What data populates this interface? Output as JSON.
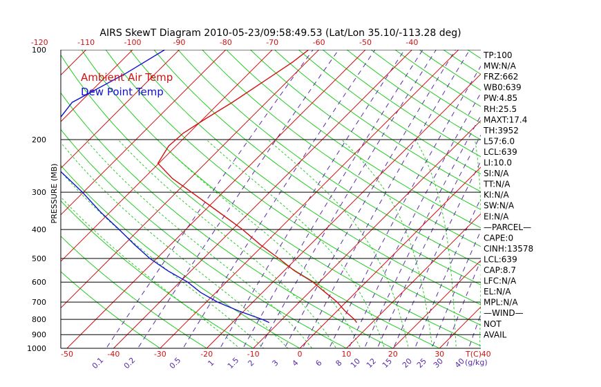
{
  "title": "AIRS SkewT Diagram 2010-05-23/09:58:49.53 (Lat/Lon 35.10/-113.28 deg)",
  "legend": {
    "ambient": "Ambient Air Temp",
    "dewpoint": "Dew Point Temp"
  },
  "colors": {
    "temperature": "#d01010",
    "dewpoint": "#1010d0",
    "isotherm": "#d01010",
    "dry_adiabat": "#22cc22",
    "moist_adiabat": "#22cc22",
    "mixing_ratio": "#5a2aa8",
    "isobar": "#000000",
    "bottom_axis": "#d01010",
    "mixing_label": "#5a2aa8"
  },
  "indices": [
    "TP:100",
    "MW:N/A",
    "FRZ:662",
    "WB0:639",
    "PW:4.85",
    "RH:25.5",
    "MAXT:17.4",
    "TH:3952",
    "L57:6.0",
    "LCL:639",
    "LI:10.0",
    "SI:N/A",
    "TT:N/A",
    "KI:N/A",
    "SW:N/A",
    "EI:N/A",
    "—PARCEL—",
    "CAPE:0",
    "CINH:13578",
    "LCL:639",
    "CAP:8.7",
    "LFC:N/A",
    "EL:N/A",
    "MPL:N/A",
    "—WIND—",
    "NOT",
    "AVAIL"
  ],
  "chart_data": {
    "type": "line",
    "title": "AIRS SkewT Diagram 2010-05-23/09:58:49.53 (Lat/Lon 35.10/-113.28 deg)",
    "ylabel": "PRESSURE (MB)",
    "xlabel": "T(C)",
    "y_scale": "log",
    "ylim": [
      1000,
      100
    ],
    "pressure_ticks": [
      "100",
      "200",
      "300",
      "400",
      "500",
      "600",
      "700",
      "800",
      "900",
      "1000"
    ],
    "top_temp_ticks": [
      "-120",
      "-110",
      "-100",
      "-90",
      "-80",
      "-70",
      "-60",
      "-50",
      "-40"
    ],
    "bottom_temp_ticks": [
      "-50",
      "-40",
      "-30",
      "-20",
      "-10",
      "0",
      "10",
      "20",
      "30",
      "40"
    ],
    "bottom_axis_unit": "T(C)",
    "mixing_ratio_labels": [
      "0.1",
      "0.2",
      "0.5",
      "1",
      "1.5",
      "2",
      "3",
      "4",
      "6",
      "8",
      "10",
      "12",
      "15",
      "20",
      "25",
      "30",
      "40"
    ],
    "mixing_ratio_unit": "(g/kg)",
    "grid": true,
    "legend_position": "top-left",
    "series": [
      {
        "name": "Ambient Air Temp",
        "points": [
          {
            "p": 100,
            "t": -62.2
          },
          {
            "p": 110,
            "t": -63.0
          },
          {
            "p": 130,
            "t": -65.3
          },
          {
            "p": 150,
            "t": -67.3
          },
          {
            "p": 170,
            "t": -69.5
          },
          {
            "p": 190,
            "t": -71.2
          },
          {
            "p": 210,
            "t": -71.6
          },
          {
            "p": 240,
            "t": -70.2
          },
          {
            "p": 270,
            "t": -63.8
          },
          {
            "p": 300,
            "t": -56.8
          },
          {
            "p": 350,
            "t": -46.6
          },
          {
            "p": 400,
            "t": -37.8
          },
          {
            "p": 450,
            "t": -30.7
          },
          {
            "p": 500,
            "t": -23.8
          },
          {
            "p": 550,
            "t": -17.8
          },
          {
            "p": 600,
            "t": -11.4
          },
          {
            "p": 650,
            "t": -6.5
          },
          {
            "p": 700,
            "t": -1.9
          },
          {
            "p": 750,
            "t": 1.7
          },
          {
            "p": 800,
            "t": 5.5
          },
          {
            "p": 820,
            "t": 6.7
          }
        ]
      },
      {
        "name": "Dew Point Temp",
        "points": [
          {
            "p": 100,
            "t": -93.1
          },
          {
            "p": 120,
            "t": -96.4
          },
          {
            "p": 150,
            "t": -101.7
          },
          {
            "p": 200,
            "t": -99.9
          },
          {
            "p": 250,
            "t": -90.6
          },
          {
            "p": 300,
            "t": -80.2
          },
          {
            "p": 350,
            "t": -72.0
          },
          {
            "p": 400,
            "t": -64.3
          },
          {
            "p": 450,
            "t": -57.7
          },
          {
            "p": 500,
            "t": -51.5
          },
          {
            "p": 550,
            "t": -45.0
          },
          {
            "p": 600,
            "t": -38.3
          },
          {
            "p": 650,
            "t": -33.3
          },
          {
            "p": 700,
            "t": -27.6
          },
          {
            "p": 750,
            "t": -21.1
          },
          {
            "p": 800,
            "t": -14.3
          },
          {
            "p": 820,
            "t": -12.1
          }
        ]
      }
    ]
  }
}
